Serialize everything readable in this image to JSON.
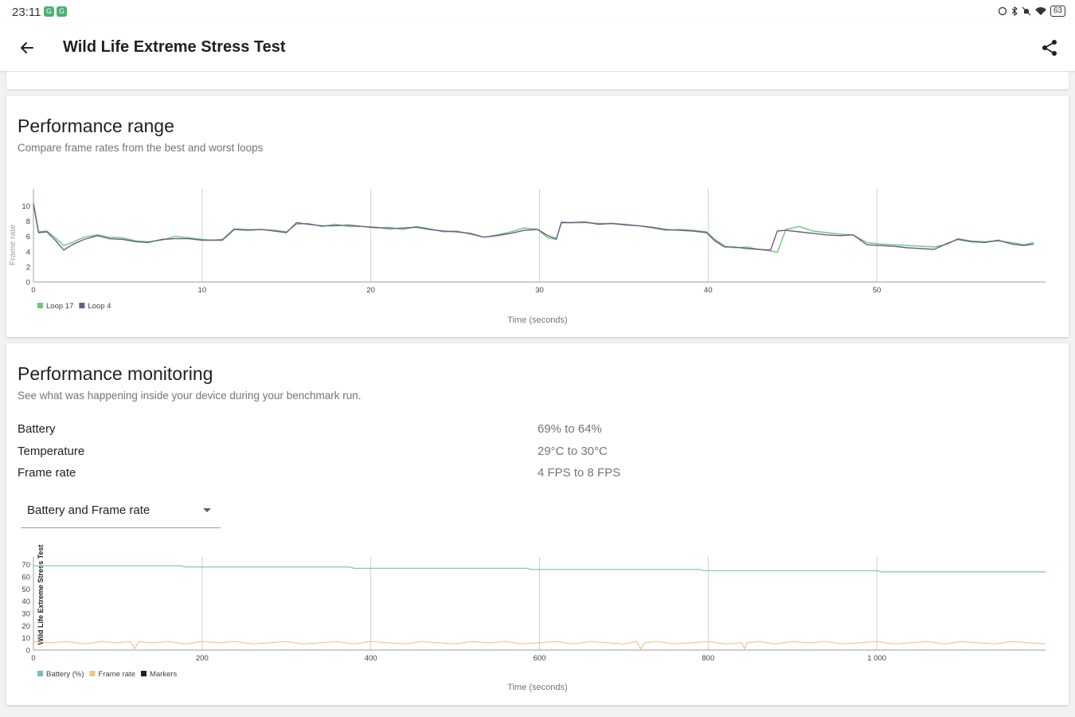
{
  "status_bar": {
    "time": "23:11",
    "battery": "63",
    "app_icon_glyph": "G"
  },
  "header": {
    "title": "Wild Life Extreme Stress Test",
    "back_icon": "arrow-left-icon",
    "share_icon": "share-icon"
  },
  "performance_range": {
    "title": "Performance range",
    "subtitle": "Compare frame rates from the best and worst loops"
  },
  "performance_monitoring": {
    "title": "Performance monitoring",
    "subtitle": "See what was happening inside your device during your benchmark run.",
    "metrics": [
      {
        "label": "Battery",
        "value": "69% to 64%"
      },
      {
        "label": "Temperature",
        "value": "29°C to 30°C"
      },
      {
        "label": "Frame rate",
        "value": "4 FPS to 8 FPS"
      }
    ],
    "dropdown": {
      "selected": "Battery and Frame rate"
    }
  },
  "colors": {
    "loop17": "#6cc77a",
    "loop4": "#6b5c8c",
    "battery": "#78c0bd",
    "framerate": "#f4c28d",
    "markers": "#222222",
    "grid": "#d0d0d0"
  },
  "chart_data": [
    {
      "type": "line",
      "title": "",
      "xlabel": "Time (seconds)",
      "ylabel": "Frame rate",
      "xlim": [
        0,
        60
      ],
      "ylim": [
        0,
        11
      ],
      "xticks": [
        "0",
        "10",
        "20",
        "30",
        "40",
        "50"
      ],
      "yticks": [
        "0",
        "2",
        "4",
        "6",
        "8",
        "10"
      ],
      "grid": "vertical",
      "legend": "bottom-left",
      "series": [
        {
          "name": "Loop 17",
          "color_key": "loop17",
          "x": [
            0,
            0.3,
            0.8,
            1.3,
            1.8,
            2.3,
            3,
            3.8,
            4.5,
            5.3,
            6.1,
            6.8,
            7.6,
            8.4,
            9.2,
            10,
            10.6,
            11.2,
            11.9,
            12.7,
            13.5,
            14.3,
            15,
            15.6,
            16.3,
            17.1,
            17.9,
            18.7,
            19.5,
            20.3,
            21.1,
            21.9,
            22.7,
            23.5,
            24.3,
            25.1,
            25.9,
            26.7,
            27.5,
            28.3,
            29.1,
            29.9,
            30.5,
            31,
            31.3,
            31.9,
            32.7,
            33.5,
            34.3,
            35.1,
            35.9,
            36.7,
            37.5,
            38.3,
            39.1,
            39.9,
            40.4,
            41,
            41.6,
            42.3,
            43,
            43.7,
            44.1,
            44.6,
            45.4,
            46.2,
            47,
            47.8,
            48.6,
            49.4,
            50.2,
            51,
            51.8,
            52.6,
            53.4,
            54.2,
            54.8,
            55.6,
            56.4,
            57.2,
            58,
            58.7,
            59.3
          ],
          "values": [
            10.5,
            6.6,
            6.7,
            5.8,
            4.8,
            5.2,
            5.9,
            6.2,
            5.9,
            5.8,
            5.4,
            5.3,
            5.5,
            6.0,
            5.8,
            5.6,
            5.5,
            5.6,
            7.0,
            6.9,
            6.9,
            6.8,
            6.6,
            7.6,
            7.7,
            7.3,
            7.6,
            7.3,
            7.3,
            7.1,
            7.2,
            6.9,
            7.3,
            7.0,
            6.6,
            6.7,
            6.3,
            5.9,
            6.2,
            6.6,
            7.1,
            6.9,
            5.8,
            5.6,
            7.9,
            7.8,
            7.8,
            7.7,
            7.7,
            7.6,
            7.4,
            7.1,
            6.8,
            6.9,
            6.8,
            6.6,
            5.6,
            4.7,
            4.5,
            4.6,
            4.3,
            4.1,
            3.9,
            6.9,
            7.3,
            6.7,
            6.5,
            6.3,
            6.2,
            5.2,
            5.0,
            4.9,
            4.8,
            4.7,
            4.6,
            5.0,
            5.7,
            5.4,
            5.3,
            5.4,
            5.2,
            4.9,
            5.2
          ]
        },
        {
          "name": "Loop 4",
          "color_key": "loop4",
          "x": [
            0,
            0.3,
            0.8,
            1.3,
            1.8,
            2.3,
            3,
            3.8,
            4.5,
            5.3,
            6.1,
            6.8,
            7.6,
            8.4,
            9.2,
            10,
            10.6,
            11.2,
            11.9,
            12.7,
            13.5,
            14.3,
            15,
            15.6,
            16.3,
            17.1,
            17.9,
            18.7,
            19.5,
            20.3,
            21.1,
            21.9,
            22.7,
            23.5,
            24.3,
            25.1,
            25.9,
            26.7,
            27.5,
            28.3,
            29.1,
            29.9,
            30.5,
            31,
            31.3,
            31.9,
            32.7,
            33.5,
            34.3,
            35.1,
            35.9,
            36.7,
            37.5,
            38.3,
            39.1,
            39.9,
            40.4,
            41,
            41.6,
            42.3,
            43,
            43.7,
            44.1,
            44.6,
            45.4,
            46.2,
            47,
            47.8,
            48.6,
            49.4,
            50.2,
            51,
            51.8,
            52.6,
            53.4,
            54.2,
            54.8,
            55.6,
            56.4,
            57.2,
            58,
            58.7,
            59.3
          ],
          "values": [
            10.2,
            6.5,
            6.6,
            5.5,
            4.2,
            4.9,
            5.6,
            6.1,
            5.7,
            5.6,
            5.3,
            5.2,
            5.6,
            5.7,
            5.7,
            5.5,
            5.5,
            5.5,
            6.9,
            6.8,
            6.9,
            6.7,
            6.5,
            7.8,
            7.6,
            7.4,
            7.4,
            7.5,
            7.3,
            7.2,
            7.0,
            7.1,
            7.2,
            6.9,
            6.7,
            6.6,
            6.4,
            5.9,
            6.1,
            6.4,
            6.8,
            6.9,
            6.1,
            5.7,
            7.8,
            7.8,
            7.9,
            7.6,
            7.7,
            7.5,
            7.4,
            7.2,
            6.9,
            6.8,
            6.7,
            6.5,
            5.4,
            4.6,
            4.6,
            4.4,
            4.3,
            4.2,
            6.7,
            6.8,
            6.6,
            6.4,
            6.2,
            6.1,
            6.2,
            4.9,
            4.8,
            4.7,
            4.5,
            4.4,
            4.3,
            5.1,
            5.6,
            5.3,
            5.2,
            5.5,
            5.0,
            4.8,
            5.0
          ]
        }
      ]
    },
    {
      "type": "line",
      "title": "",
      "xlabel": "Time (seconds)",
      "ylabel": "Wild Life Extreme Stress Test",
      "xlim": [
        0,
        1200
      ],
      "ylim": [
        0,
        75
      ],
      "xticks": [
        "0",
        "200",
        "400",
        "600",
        "800",
        "1 000"
      ],
      "yticks": [
        "0",
        "10",
        "20",
        "30",
        "40",
        "50",
        "60",
        "70"
      ],
      "grid": "vertical",
      "legend": "bottom-left",
      "series": [
        {
          "name": "Battery (%)",
          "color_key": "battery",
          "x": [
            0,
            175,
            180,
            375,
            380,
            585,
            590,
            790,
            795,
            1000,
            1005,
            1200
          ],
          "values": [
            69,
            69,
            68,
            68,
            67,
            67,
            66,
            66,
            65,
            65,
            64,
            64
          ]
        },
        {
          "name": "Frame rate",
          "color_key": "framerate",
          "x": [
            0,
            20,
            40,
            60,
            80,
            100,
            115,
            120,
            125,
            140,
            160,
            180,
            200,
            220,
            240,
            260,
            280,
            300,
            320,
            340,
            360,
            380,
            400,
            420,
            440,
            460,
            480,
            500,
            520,
            540,
            560,
            580,
            600,
            620,
            640,
            660,
            680,
            700,
            715,
            720,
            725,
            740,
            760,
            780,
            800,
            820,
            840,
            843,
            846,
            860,
            880,
            900,
            920,
            940,
            960,
            980,
            1000,
            1020,
            1040,
            1060,
            1080,
            1100,
            1120,
            1140,
            1160,
            1180,
            1200
          ],
          "values": [
            7,
            6,
            7,
            5,
            7,
            6,
            7,
            1,
            7,
            6,
            7,
            5,
            7,
            6,
            7,
            5,
            6,
            7,
            5,
            6,
            7,
            5,
            7,
            6,
            5,
            7,
            6,
            5,
            7,
            6,
            7,
            5,
            6,
            7,
            5,
            7,
            6,
            5,
            7,
            1,
            6,
            7,
            5,
            6,
            7,
            5,
            6,
            1,
            6,
            7,
            5,
            7,
            6,
            7,
            5,
            6,
            7,
            5,
            6,
            7,
            5,
            7,
            6,
            5,
            7,
            6,
            5
          ]
        },
        {
          "name": "Markers",
          "color_key": "markers",
          "x": [],
          "values": []
        }
      ]
    }
  ]
}
